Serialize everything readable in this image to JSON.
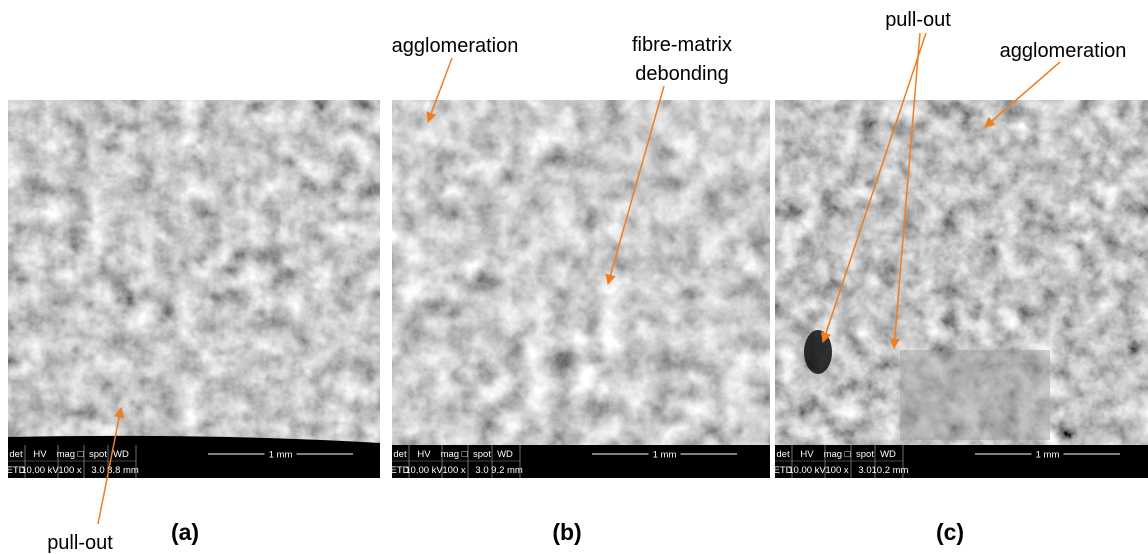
{
  "panels": [
    {
      "label": "(a)",
      "info": {
        "head": [
          "det",
          "HV",
          "mag □",
          "spot",
          "WD"
        ],
        "values": [
          "ETD",
          "10.00 kV",
          "100 x",
          "3.0",
          "8.8 mm"
        ],
        "scale": "1 mm"
      }
    },
    {
      "label": "(b)",
      "info": {
        "head": [
          "det",
          "HV",
          "mag □",
          "spot",
          "WD"
        ],
        "values": [
          "ETD",
          "10.00 kV",
          "100 x",
          "3.0",
          "9.2 mm"
        ],
        "scale": "1 mm"
      }
    },
    {
      "label": "(c)",
      "info": {
        "head": [
          "det",
          "HV",
          "mag □",
          "spot",
          "WD"
        ],
        "values": [
          "ETD",
          "10.00 kV",
          "100 x",
          "3.0",
          "10.2 mm"
        ],
        "scale": "1 mm"
      }
    }
  ],
  "annotations": [
    {
      "text": "pull-out"
    },
    {
      "text": "agglomeration"
    },
    {
      "text": "fibre-matrix"
    },
    {
      "text": "debonding"
    },
    {
      "text": "pull-out"
    },
    {
      "text": "agglomeration"
    }
  ]
}
